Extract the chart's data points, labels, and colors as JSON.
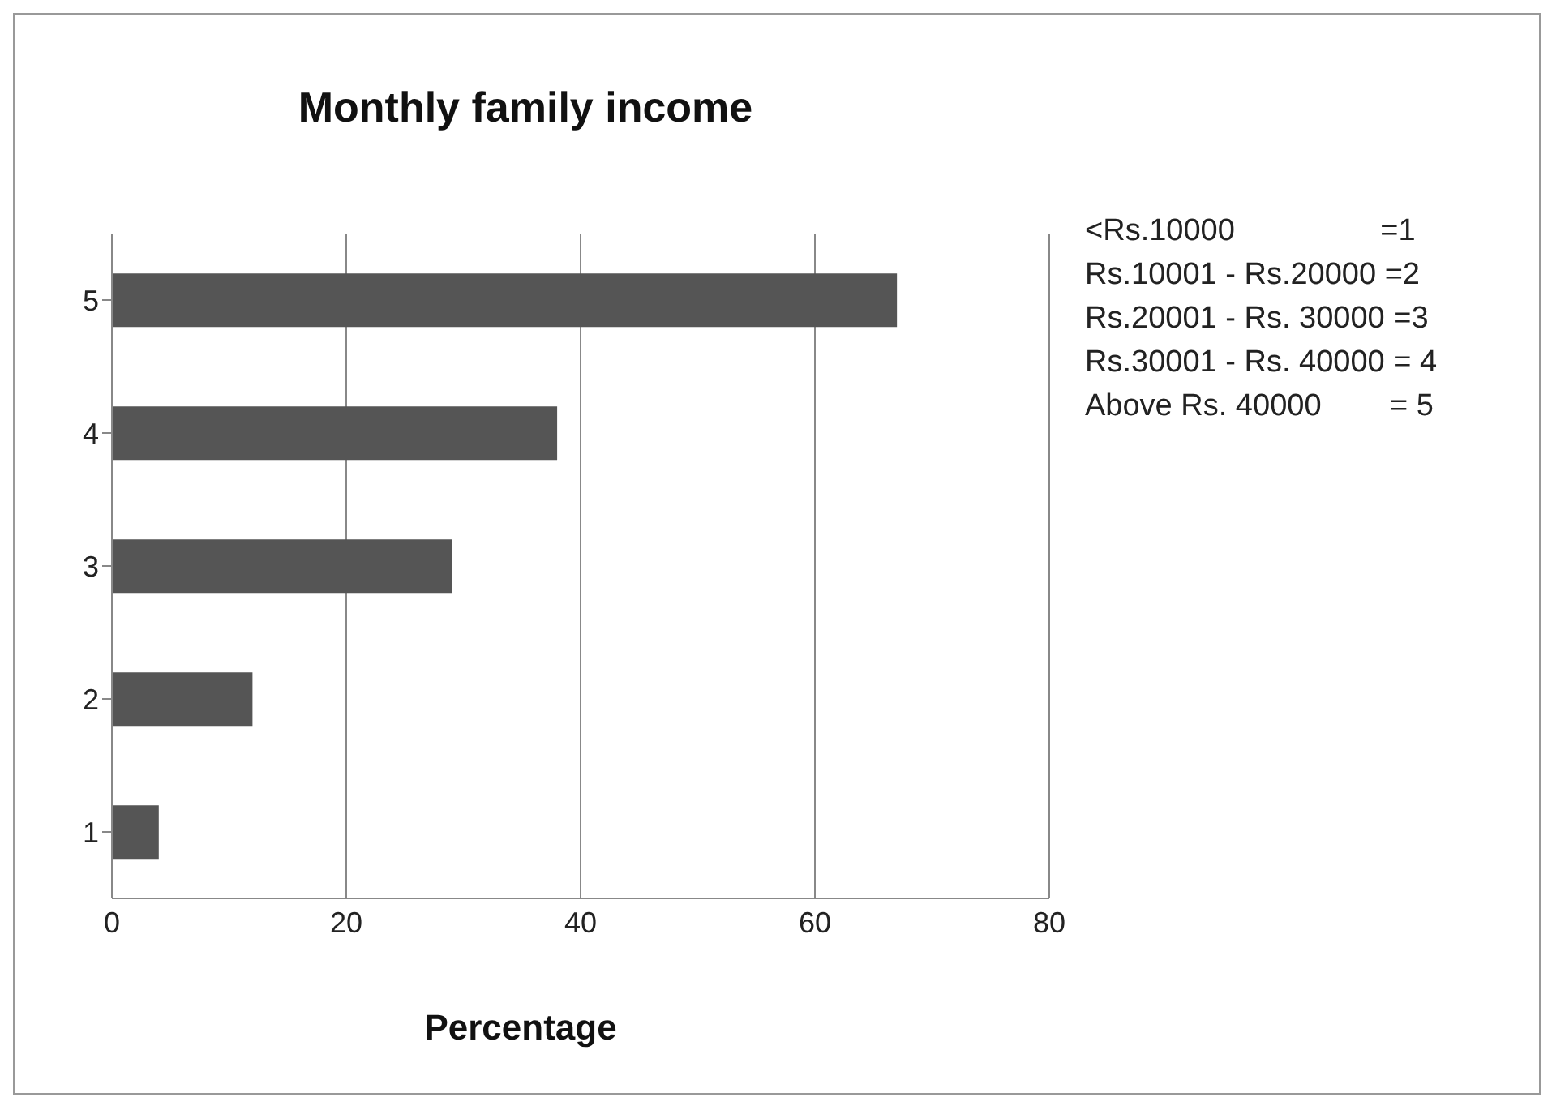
{
  "chart_data": {
    "type": "bar",
    "orientation": "horizontal",
    "title": "Monthly family income",
    "xlabel": "Percentage",
    "categories": [
      "5",
      "4",
      "3",
      "2",
      "1"
    ],
    "values": [
      67,
      38,
      29,
      12,
      4
    ],
    "color": "#555555",
    "xlim": [
      0,
      80
    ],
    "xticks": [
      0,
      20,
      40,
      60,
      80
    ],
    "grid": "x",
    "annotations": [
      "<Rs.10000                 =1",
      "Rs.10001 - Rs.20000 =2",
      "Rs.20001 - Rs. 30000 =3",
      "Rs.30001 - Rs. 40000 = 4",
      "Above Rs. 40000        = 5"
    ]
  }
}
